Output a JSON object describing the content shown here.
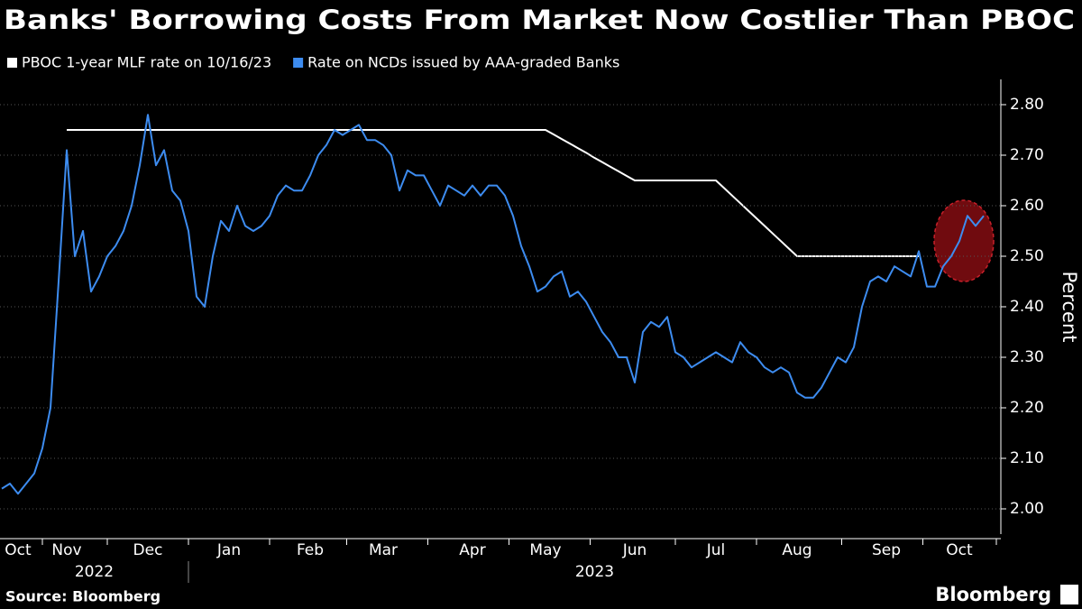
{
  "chart_data": {
    "type": "line",
    "title": "Banks' Borrowing Costs From Market Now Costlier Than PBOC",
    "y_label": "Percent",
    "categories": [
      null,
      null,
      "Oct",
      null,
      null,
      null,
      null,
      null,
      "Nov",
      null,
      null,
      null,
      null,
      null,
      null,
      null,
      null,
      null,
      "Dec",
      null,
      null,
      null,
      null,
      null,
      null,
      null,
      null,
      null,
      "Jan",
      null,
      null,
      null,
      null,
      null,
      null,
      null,
      null,
      null,
      "Feb",
      null,
      null,
      null,
      null,
      null,
      null,
      null,
      null,
      "Mar",
      null,
      null,
      null,
      null,
      null,
      null,
      null,
      null,
      null,
      null,
      "Apr",
      null,
      null,
      null,
      null,
      null,
      null,
      null,
      null,
      "May",
      null,
      null,
      null,
      null,
      null,
      null,
      null,
      null,
      null,
      null,
      "Jun",
      null,
      null,
      null,
      null,
      null,
      null,
      null,
      null,
      null,
      "Jul",
      null,
      null,
      null,
      null,
      null,
      null,
      null,
      null,
      null,
      "Aug",
      null,
      null,
      null,
      null,
      null,
      null,
      null,
      null,
      null,
      null,
      "Sep",
      null,
      null,
      null,
      null,
      null,
      null,
      null,
      null,
      "Oct",
      null,
      null,
      null
    ],
    "year_labels": [
      "2022",
      "2023"
    ],
    "series": [
      {
        "name": "PBOC 1-year MLF rate on 10/16/23",
        "color": "#ffffff",
        "values": [
          null,
          null,
          null,
          null,
          null,
          null,
          null,
          null,
          2.75,
          2.75,
          2.75,
          2.75,
          2.75,
          2.75,
          2.75,
          2.75,
          2.75,
          2.75,
          2.75,
          2.75,
          2.75,
          2.75,
          2.75,
          2.75,
          2.75,
          2.75,
          2.75,
          2.75,
          2.75,
          2.75,
          2.75,
          2.75,
          2.75,
          2.75,
          2.75,
          2.75,
          2.75,
          2.75,
          2.75,
          2.75,
          2.75,
          2.75,
          2.75,
          2.75,
          2.75,
          2.75,
          2.75,
          2.75,
          2.75,
          2.75,
          2.75,
          2.75,
          2.75,
          2.75,
          2.75,
          2.75,
          2.75,
          2.75,
          2.75,
          2.75,
          2.75,
          2.75,
          2.75,
          2.75,
          2.75,
          2.75,
          2.75,
          2.75,
          2.741,
          2.732,
          2.723,
          2.714,
          2.705,
          2.695,
          2.686,
          2.677,
          2.668,
          2.659,
          2.65,
          2.65,
          2.65,
          2.65,
          2.65,
          2.65,
          2.65,
          2.65,
          2.65,
          2.65,
          2.65,
          2.635,
          2.62,
          2.605,
          2.59,
          2.575,
          2.56,
          2.545,
          2.53,
          2.515,
          2.5,
          2.5,
          2.5,
          2.5,
          2.5,
          2.5,
          2.5,
          2.5,
          2.5,
          2.5,
          2.5,
          2.5,
          2.5,
          2.5,
          2.5,
          2.5,
          null,
          null,
          null,
          null,
          null,
          null,
          null,
          null
        ]
      },
      {
        "name": "Rate on NCDs issued by AAA-graded Banks",
        "color": "#3d8cf0",
        "values": [
          2.04,
          2.05,
          2.03,
          2.05,
          2.07,
          2.12,
          2.2,
          2.45,
          2.71,
          2.5,
          2.55,
          2.43,
          2.46,
          2.5,
          2.52,
          2.55,
          2.6,
          2.68,
          2.78,
          2.68,
          2.71,
          2.63,
          2.61,
          2.55,
          2.42,
          2.4,
          2.5,
          2.57,
          2.55,
          2.6,
          2.56,
          2.55,
          2.56,
          2.58,
          2.62,
          2.64,
          2.63,
          2.63,
          2.66,
          2.7,
          2.72,
          2.75,
          2.74,
          2.75,
          2.76,
          2.73,
          2.73,
          2.72,
          2.7,
          2.63,
          2.67,
          2.66,
          2.66,
          2.63,
          2.6,
          2.64,
          2.63,
          2.62,
          2.64,
          2.62,
          2.64,
          2.64,
          2.62,
          2.58,
          2.52,
          2.48,
          2.43,
          2.44,
          2.46,
          2.47,
          2.42,
          2.43,
          2.41,
          2.38,
          2.35,
          2.33,
          2.3,
          2.3,
          2.25,
          2.35,
          2.37,
          2.36,
          2.38,
          2.31,
          2.3,
          2.28,
          2.29,
          2.3,
          2.31,
          2.3,
          2.29,
          2.33,
          2.31,
          2.3,
          2.28,
          2.27,
          2.28,
          2.27,
          2.23,
          2.22,
          2.22,
          2.24,
          2.27,
          2.3,
          2.29,
          2.32,
          2.4,
          2.45,
          2.46,
          2.45,
          2.48,
          2.47,
          2.46,
          2.51,
          2.44,
          2.44,
          2.48,
          2.5,
          2.53,
          2.58,
          2.56,
          2.58
        ]
      }
    ],
    "ylim": [
      1.95,
      2.85
    ],
    "yticks": [
      {
        "value": 2.0,
        "label": "2.00"
      },
      {
        "value": 2.1,
        "label": "2.10"
      },
      {
        "value": 2.2,
        "label": "2.20"
      },
      {
        "value": 2.3,
        "label": "2.30"
      },
      {
        "value": 2.4,
        "label": "2.40"
      },
      {
        "value": 2.5,
        "label": "2.50"
      },
      {
        "value": 2.6,
        "label": "2.60"
      },
      {
        "value": 2.7,
        "label": "2.70"
      },
      {
        "value": 2.8,
        "label": "2.80"
      }
    ],
    "grid": true
  },
  "footer": {
    "source": "Source: Bloomberg",
    "logo": "Bloomberg"
  }
}
